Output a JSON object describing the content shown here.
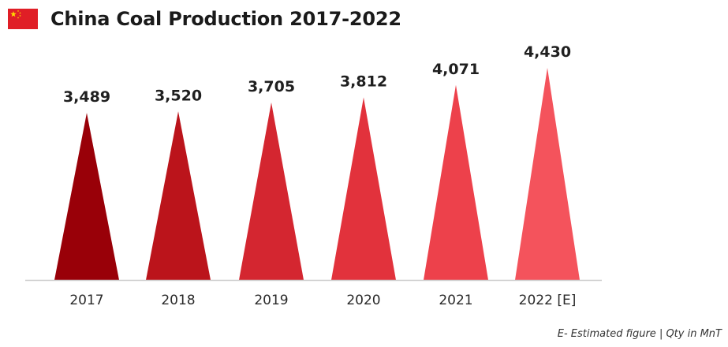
{
  "header": {
    "flag_icon": "china-flag-icon",
    "title": "China Coal Production 2017-2022"
  },
  "footnote": "E- Estimated figure | Qty in MnT",
  "colors": {
    "bars": [
      "#990008",
      "#bb141b",
      "#d42630",
      "#e2323c",
      "#ed414b",
      "#f4535c"
    ],
    "baseline": "#cccccc",
    "flag_red": "#e01e26",
    "flag_star": "#ffde00"
  },
  "chart_data": {
    "type": "bar",
    "mark_shape": "triangle",
    "categories": [
      "2017",
      "2018",
      "2019",
      "2020",
      "2021",
      "2022 [E]"
    ],
    "values": [
      3489,
      3520,
      3705,
      3812,
      4071,
      4430
    ],
    "value_labels": [
      "3,489",
      "3,520",
      "3,705",
      "3,812",
      "4,071",
      "4,430"
    ],
    "title": "China Coal Production 2017-2022",
    "xlabel": "",
    "ylabel": "",
    "ylim": [
      0,
      4430
    ],
    "grid": false,
    "legend": "none"
  }
}
